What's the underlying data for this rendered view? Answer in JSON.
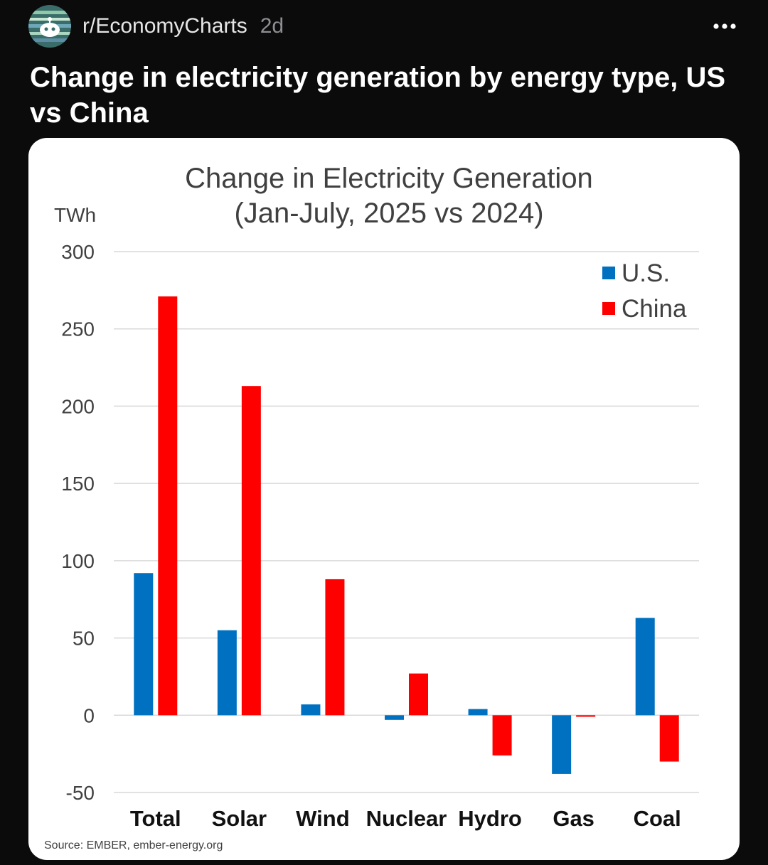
{
  "post": {
    "subreddit": "r/EconomyCharts",
    "age": "2d",
    "title": "Change in electricity generation by energy type, US vs China",
    "more_icon": "more-horizontal-icon"
  },
  "colors": {
    "us": "#0070c0",
    "china": "#ff0000",
    "grid": "#d9d9d9",
    "text": "#404040"
  },
  "chart_data": {
    "type": "bar",
    "title_lines": [
      "Change in Electricity Generation",
      "(Jan-July, 2025 vs 2024)"
    ],
    "ylabel": "TWh",
    "xlabel": "",
    "ylim": [
      -50,
      300
    ],
    "yticks": [
      300,
      250,
      200,
      150,
      100,
      50,
      0,
      -50
    ],
    "categories": [
      "Total",
      "Solar",
      "Wind",
      "Nuclear",
      "Hydro",
      "Gas",
      "Coal"
    ],
    "series": [
      {
        "name": "U.S.",
        "values": [
          92,
          55,
          7,
          -3,
          4,
          -38,
          63
        ]
      },
      {
        "name": "China",
        "values": [
          271,
          213,
          88,
          27,
          -26,
          -1,
          -30
        ]
      }
    ],
    "legend_position": "top-right",
    "grid": true,
    "source": "Source: EMBER, ember-energy.org"
  }
}
